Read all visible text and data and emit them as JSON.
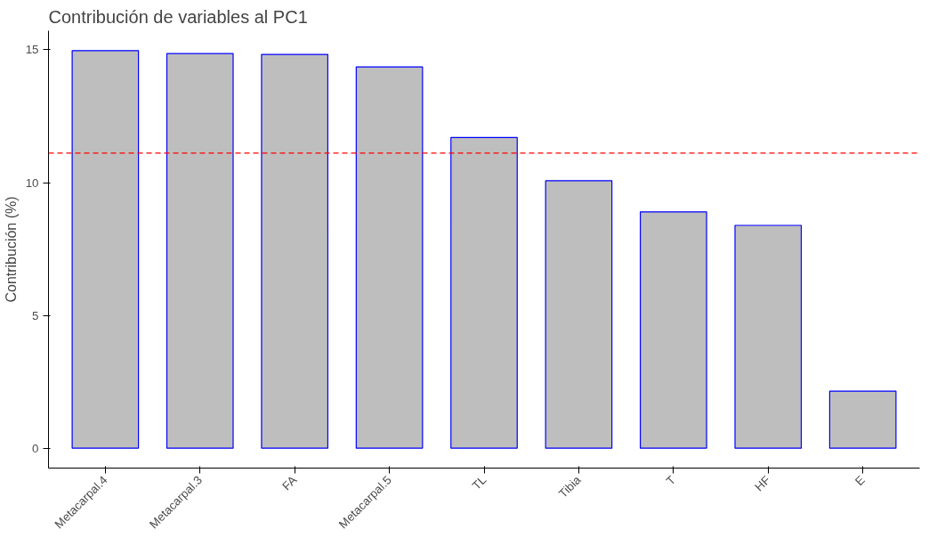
{
  "chart_data": {
    "type": "bar",
    "title": "Contribución de variables al PC1",
    "ylabel": "Contribución (%)",
    "categories": [
      "Metacarpal.4",
      "Metacarpal.3",
      "FA",
      "Metacarpal.5",
      "TL",
      "Tibia",
      "T",
      "HF",
      "E"
    ],
    "values": [
      14.97,
      14.86,
      14.83,
      14.36,
      11.7,
      10.07,
      8.9,
      8.39,
      2.15
    ],
    "color": "#bebebe",
    "ylim": [
      -0.75,
      15.72
    ],
    "yticks": [
      0,
      5,
      10,
      15
    ],
    "grid": false,
    "ref_lines": [
      {
        "axis": "y",
        "value": 11.11,
        "color": "#ff0000",
        "line_style": "dashed"
      }
    ]
  }
}
